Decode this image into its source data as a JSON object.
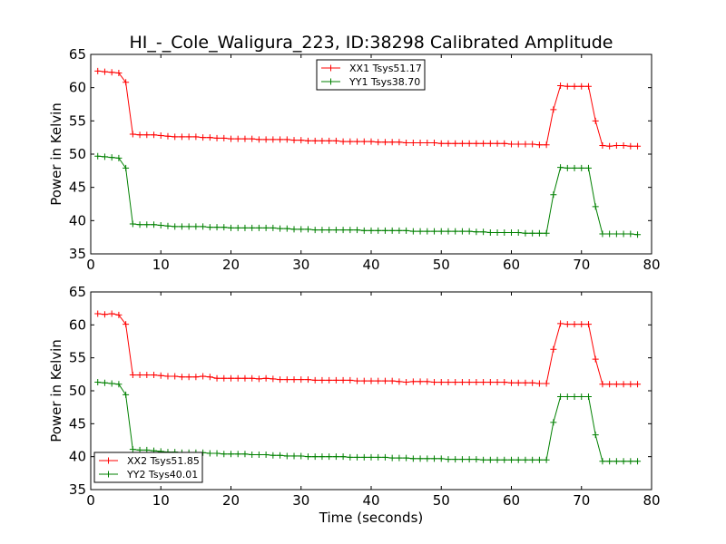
{
  "figure_title": "HI_-_Cole_Waligura_223, ID:38298 Calibrated Amplitude",
  "chart_data": [
    {
      "type": "line",
      "ylabel": "Power in Kelvin",
      "xlabel": "",
      "xlim": [
        0,
        80
      ],
      "ylim": [
        35,
        65
      ],
      "xticks": [
        0,
        10,
        20,
        30,
        40,
        50,
        60,
        70,
        80
      ],
      "yticks": [
        35,
        40,
        45,
        50,
        55,
        60,
        65
      ],
      "legend_position": "upper-center",
      "series": [
        {
          "name": "XX1 Tsys51.17",
          "color": "#ff0000",
          "x": [
            1,
            2,
            3,
            4,
            5,
            6,
            7,
            8,
            9,
            10,
            11,
            12,
            13,
            14,
            15,
            16,
            17,
            18,
            19,
            20,
            21,
            22,
            23,
            24,
            25,
            26,
            27,
            28,
            29,
            30,
            31,
            32,
            33,
            34,
            35,
            36,
            37,
            38,
            39,
            40,
            41,
            42,
            43,
            44,
            45,
            46,
            47,
            48,
            49,
            50,
            51,
            52,
            53,
            54,
            55,
            56,
            57,
            58,
            59,
            60,
            61,
            62,
            63,
            64,
            65,
            66,
            67,
            68,
            69,
            70,
            71,
            72,
            73,
            74,
            75,
            76,
            77,
            78
          ],
          "y": [
            62.5,
            62.4,
            62.3,
            62.2,
            60.8,
            53.0,
            52.9,
            52.9,
            52.9,
            52.8,
            52.7,
            52.6,
            52.6,
            52.6,
            52.6,
            52.5,
            52.5,
            52.4,
            52.4,
            52.3,
            52.3,
            52.3,
            52.3,
            52.2,
            52.2,
            52.2,
            52.2,
            52.2,
            52.1,
            52.1,
            52.0,
            52.0,
            52.0,
            52.0,
            52.0,
            51.9,
            51.9,
            51.9,
            51.9,
            51.9,
            51.8,
            51.8,
            51.8,
            51.8,
            51.7,
            51.7,
            51.7,
            51.7,
            51.7,
            51.6,
            51.6,
            51.6,
            51.6,
            51.6,
            51.6,
            51.6,
            51.6,
            51.6,
            51.6,
            51.5,
            51.5,
            51.5,
            51.5,
            51.4,
            51.4,
            56.7,
            60.3,
            60.2,
            60.2,
            60.2,
            60.2,
            55.0,
            51.3,
            51.2,
            51.3,
            51.3,
            51.2,
            51.2
          ]
        },
        {
          "name": "YY1 Tsys38.70",
          "color": "#008000",
          "x": [
            1,
            2,
            3,
            4,
            5,
            6,
            7,
            8,
            9,
            10,
            11,
            12,
            13,
            14,
            15,
            16,
            17,
            18,
            19,
            20,
            21,
            22,
            23,
            24,
            25,
            26,
            27,
            28,
            29,
            30,
            31,
            32,
            33,
            34,
            35,
            36,
            37,
            38,
            39,
            40,
            41,
            42,
            43,
            44,
            45,
            46,
            47,
            48,
            49,
            50,
            51,
            52,
            53,
            54,
            55,
            56,
            57,
            58,
            59,
            60,
            61,
            62,
            63,
            64,
            65,
            66,
            67,
            68,
            69,
            70,
            71,
            72,
            73,
            74,
            75,
            76,
            77,
            78
          ],
          "y": [
            49.7,
            49.6,
            49.5,
            49.4,
            47.9,
            39.5,
            39.4,
            39.4,
            39.4,
            39.3,
            39.2,
            39.1,
            39.1,
            39.1,
            39.1,
            39.1,
            39.0,
            39.0,
            39.0,
            38.9,
            38.9,
            38.9,
            38.9,
            38.9,
            38.9,
            38.9,
            38.8,
            38.8,
            38.7,
            38.7,
            38.7,
            38.6,
            38.6,
            38.6,
            38.6,
            38.6,
            38.6,
            38.6,
            38.5,
            38.5,
            38.5,
            38.5,
            38.5,
            38.5,
            38.5,
            38.4,
            38.4,
            38.4,
            38.4,
            38.4,
            38.4,
            38.4,
            38.4,
            38.4,
            38.3,
            38.3,
            38.2,
            38.2,
            38.2,
            38.2,
            38.2,
            38.1,
            38.1,
            38.1,
            38.1,
            43.9,
            48.0,
            47.9,
            47.9,
            47.9,
            47.9,
            42.1,
            38.0,
            38.0,
            38.0,
            38.0,
            38.0,
            37.9
          ]
        }
      ]
    },
    {
      "type": "line",
      "ylabel": "Power in Kelvin",
      "xlabel": "Time (seconds)",
      "xlim": [
        0,
        80
      ],
      "ylim": [
        35,
        65
      ],
      "xticks": [
        0,
        10,
        20,
        30,
        40,
        50,
        60,
        70,
        80
      ],
      "yticks": [
        35,
        40,
        45,
        50,
        55,
        60,
        65
      ],
      "legend_position": "lower-left",
      "series": [
        {
          "name": "XX2 Tsys51.85",
          "color": "#ff0000",
          "x": [
            1,
            2,
            3,
            4,
            5,
            6,
            7,
            8,
            9,
            10,
            11,
            12,
            13,
            14,
            15,
            16,
            17,
            18,
            19,
            20,
            21,
            22,
            23,
            24,
            25,
            26,
            27,
            28,
            29,
            30,
            31,
            32,
            33,
            34,
            35,
            36,
            37,
            38,
            39,
            40,
            41,
            42,
            43,
            44,
            45,
            46,
            47,
            48,
            49,
            50,
            51,
            52,
            53,
            54,
            55,
            56,
            57,
            58,
            59,
            60,
            61,
            62,
            63,
            64,
            65,
            66,
            67,
            68,
            69,
            70,
            71,
            72,
            73,
            74,
            75,
            76,
            77,
            78
          ],
          "y": [
            61.7,
            61.6,
            61.7,
            61.5,
            60.1,
            52.4,
            52.4,
            52.4,
            52.4,
            52.3,
            52.2,
            52.2,
            52.1,
            52.1,
            52.1,
            52.2,
            52.1,
            51.9,
            51.9,
            51.9,
            51.9,
            51.9,
            51.9,
            51.8,
            51.9,
            51.8,
            51.7,
            51.7,
            51.7,
            51.7,
            51.7,
            51.6,
            51.6,
            51.6,
            51.6,
            51.6,
            51.6,
            51.5,
            51.5,
            51.5,
            51.5,
            51.5,
            51.5,
            51.4,
            51.3,
            51.4,
            51.4,
            51.4,
            51.3,
            51.3,
            51.3,
            51.3,
            51.3,
            51.3,
            51.3,
            51.3,
            51.3,
            51.3,
            51.3,
            51.2,
            51.2,
            51.2,
            51.2,
            51.1,
            51.1,
            56.3,
            60.2,
            60.1,
            60.1,
            60.1,
            60.1,
            54.8,
            51.0,
            51.0,
            51.0,
            51.0,
            51.0,
            51.0
          ]
        },
        {
          "name": "YY2 Tsys40.01",
          "color": "#008000",
          "x": [
            1,
            2,
            3,
            4,
            5,
            6,
            7,
            8,
            9,
            10,
            11,
            12,
            13,
            14,
            15,
            16,
            17,
            18,
            19,
            20,
            21,
            22,
            23,
            24,
            25,
            26,
            27,
            28,
            29,
            30,
            31,
            32,
            33,
            34,
            35,
            36,
            37,
            38,
            39,
            40,
            41,
            42,
            43,
            44,
            45,
            46,
            47,
            48,
            49,
            50,
            51,
            52,
            53,
            54,
            55,
            56,
            57,
            58,
            59,
            60,
            61,
            62,
            63,
            64,
            65,
            66,
            67,
            68,
            69,
            70,
            71,
            72,
            73,
            74,
            75,
            76,
            77,
            78
          ],
          "y": [
            51.3,
            51.2,
            51.1,
            51.0,
            49.4,
            41.1,
            41.0,
            41.0,
            40.9,
            40.8,
            40.7,
            40.7,
            40.6,
            40.6,
            40.6,
            40.6,
            40.5,
            40.5,
            40.4,
            40.4,
            40.4,
            40.4,
            40.3,
            40.3,
            40.3,
            40.2,
            40.2,
            40.1,
            40.1,
            40.1,
            40.0,
            40.0,
            40.0,
            40.0,
            40.0,
            40.0,
            39.9,
            39.9,
            39.9,
            39.9,
            39.9,
            39.9,
            39.8,
            39.8,
            39.8,
            39.7,
            39.7,
            39.7,
            39.7,
            39.7,
            39.6,
            39.6,
            39.6,
            39.6,
            39.6,
            39.5,
            39.5,
            39.5,
            39.5,
            39.5,
            39.5,
            39.5,
            39.5,
            39.5,
            39.5,
            45.2,
            49.1,
            49.1,
            49.1,
            49.1,
            49.1,
            43.3,
            39.3,
            39.3,
            39.3,
            39.3,
            39.3,
            39.3
          ]
        }
      ]
    }
  ]
}
